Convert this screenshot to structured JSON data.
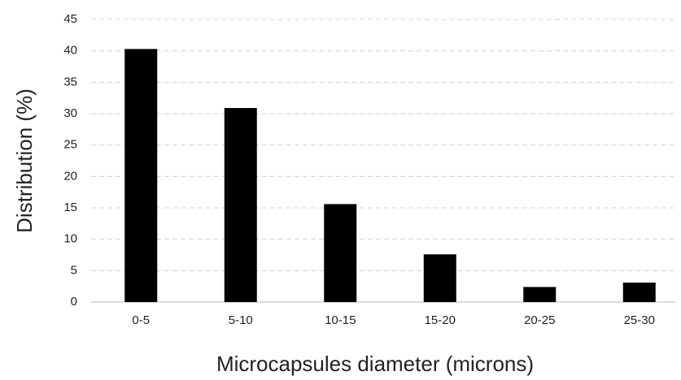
{
  "chart_data": {
    "type": "bar",
    "x_label": "Microcapsules diameter (microns)",
    "y_label": "Distribution (%)",
    "categories": [
      "0-5",
      "5-10",
      "10-15",
      "15-20",
      "20-25",
      "25-30"
    ],
    "values": [
      40.3,
      30.9,
      15.6,
      7.6,
      2.4,
      3.1
    ],
    "color": "#000000",
    "ylim": [
      0,
      45
    ],
    "yticks": [
      0,
      5,
      10,
      15,
      20,
      25,
      30,
      35,
      40,
      45
    ],
    "grid": true
  }
}
